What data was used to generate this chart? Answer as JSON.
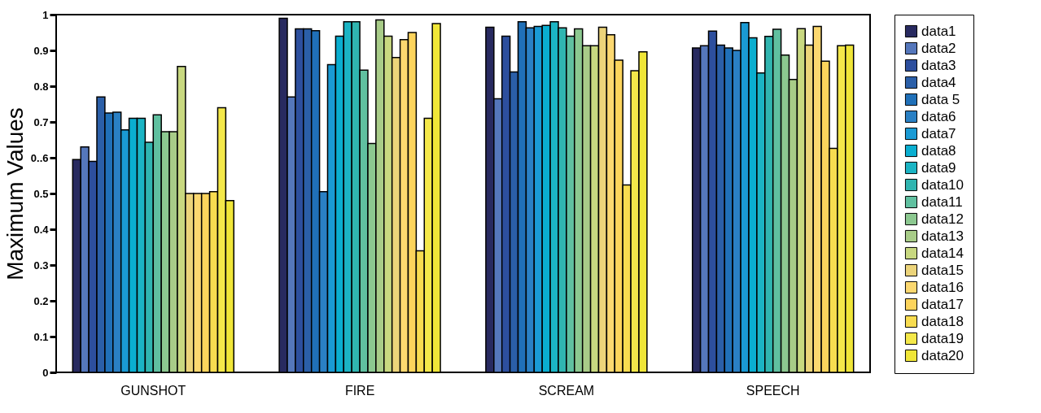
{
  "chart_data": {
    "type": "bar",
    "ylabel": "Maximum Values",
    "categories": [
      "GUNSHOT",
      "FIRE",
      "SCREAM",
      "SPEECH"
    ],
    "series": [
      {
        "name": "data1",
        "color": "#282a60",
        "values": [
          0.595,
          0.99,
          0.965,
          0.907
        ]
      },
      {
        "name": "data2",
        "color": "#5577bb",
        "values": [
          0.63,
          0.77,
          0.765,
          0.913
        ]
      },
      {
        "name": "data3",
        "color": "#2d4f9e",
        "values": [
          0.59,
          0.96,
          0.94,
          0.954
        ]
      },
      {
        "name": "data4",
        "color": "#2b5fa8",
        "values": [
          0.77,
          0.96,
          0.84,
          0.915
        ]
      },
      {
        "name": "data 5",
        "color": "#2070b8",
        "values": [
          0.725,
          0.955,
          0.98,
          0.907
        ]
      },
      {
        "name": "data6",
        "color": "#2a80c4",
        "values": [
          0.727,
          0.505,
          0.963,
          0.9
        ]
      },
      {
        "name": "data7",
        "color": "#1a9ad4",
        "values": [
          0.678,
          0.86,
          0.967,
          0.978
        ]
      },
      {
        "name": "data8",
        "color": "#0aaed0",
        "values": [
          0.71,
          0.94,
          0.97,
          0.935
        ]
      },
      {
        "name": "data9",
        "color": "#1bb4c4",
        "values": [
          0.71,
          0.98,
          0.98,
          0.837
        ]
      },
      {
        "name": "data10",
        "color": "#30b5b0",
        "values": [
          0.643,
          0.98,
          0.963,
          0.939
        ]
      },
      {
        "name": "data11",
        "color": "#60c0a0",
        "values": [
          0.72,
          0.845,
          0.94,
          0.959
        ]
      },
      {
        "name": "data12",
        "color": "#8cc890",
        "values": [
          0.673,
          0.64,
          0.96,
          0.887
        ]
      },
      {
        "name": "data13",
        "color": "#a8cc88",
        "values": [
          0.673,
          0.985,
          0.913,
          0.819
        ]
      },
      {
        "name": "data14",
        "color": "#c8d880",
        "values": [
          0.855,
          0.94,
          0.913,
          0.961
        ]
      },
      {
        "name": "data15",
        "color": "#ecd47a",
        "values": [
          0.5,
          0.88,
          0.965,
          0.915
        ]
      },
      {
        "name": "data16",
        "color": "#fcd870",
        "values": [
          0.5,
          0.93,
          0.944,
          0.967
        ]
      },
      {
        "name": "data17",
        "color": "#fcd45c",
        "values": [
          0.5,
          0.95,
          0.873,
          0.87
        ]
      },
      {
        "name": "data18",
        "color": "#f8dc50",
        "values": [
          0.505,
          0.34,
          0.524,
          0.626
        ]
      },
      {
        "name": "data19",
        "color": "#f4e84a",
        "values": [
          0.74,
          0.71,
          0.843,
          0.913
        ]
      },
      {
        "name": "data20",
        "color": "#f0e638",
        "values": [
          0.48,
          0.975,
          0.896,
          0.915
        ]
      }
    ],
    "ylim": [
      0,
      1
    ],
    "yticks": [
      0,
      0.1,
      0.2,
      0.3,
      0.4,
      0.5,
      {
        "value": 0.6,
        "label": "0..6"
      },
      0.7,
      0.8,
      0.9,
      1
    ],
    "legend": "right"
  }
}
